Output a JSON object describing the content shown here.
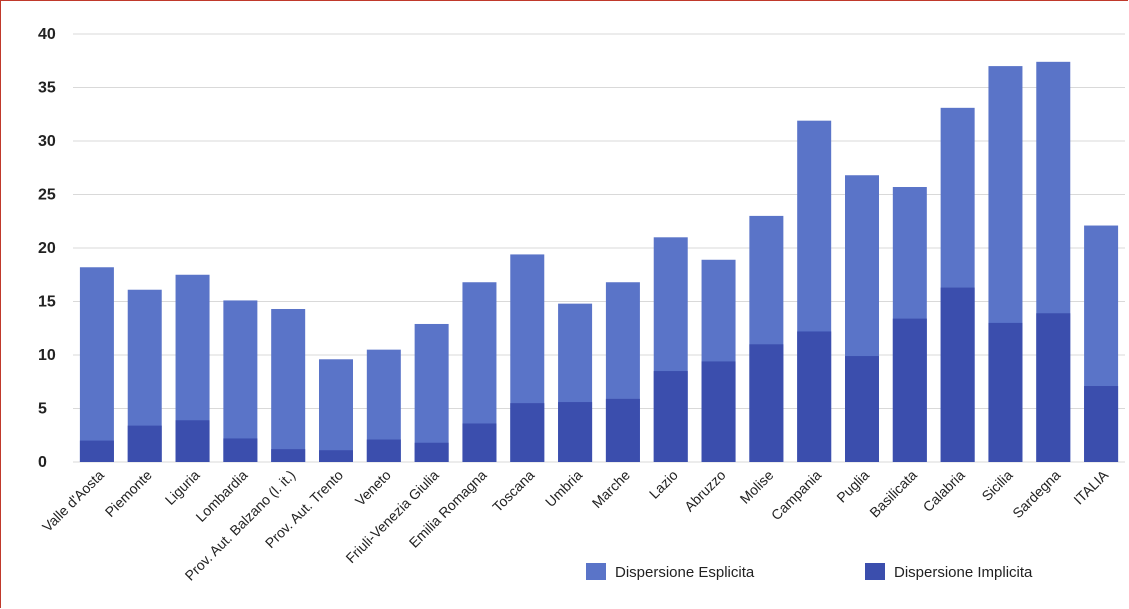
{
  "chart_data": {
    "type": "bar",
    "stacked": false,
    "overlapping": true,
    "categories": [
      "Valle d'Aosta",
      "Piemonte",
      "Liguria",
      "Lombardia",
      "Prov. Aut. Balzano (l. it.)",
      "Prov. Aut. Trento",
      "Veneto",
      "Friuli-Venezia Giulia",
      "Emilia Romagna",
      "Toscana",
      "Umbria",
      "Marche",
      "Lazio",
      "Abruzzo",
      "Molise",
      "Campania",
      "Puglia",
      "Basilicata",
      "Calabria",
      "Sicilia",
      "Sardegna",
      "ITALIA"
    ],
    "series": [
      {
        "name": "Dispersione Esplicita",
        "values": [
          18.2,
          16.1,
          17.5,
          15.1,
          14.3,
          9.6,
          10.5,
          12.9,
          16.8,
          19.4,
          14.8,
          16.8,
          21.0,
          18.9,
          23.0,
          31.9,
          26.8,
          25.7,
          33.1,
          37.0,
          37.4,
          22.1
        ]
      },
      {
        "name": "Dispersione Implicita",
        "values": [
          2.0,
          3.4,
          3.9,
          2.2,
          1.2,
          1.1,
          2.1,
          1.8,
          3.6,
          5.5,
          5.6,
          5.9,
          8.5,
          9.4,
          11.0,
          12.2,
          9.9,
          13.4,
          16.3,
          13.0,
          13.9,
          7.1
        ]
      }
    ],
    "ylim": [
      0,
      40
    ],
    "yticks": [
      0,
      5,
      10,
      15,
      20,
      25,
      30,
      35,
      40
    ],
    "grid": true,
    "legend_position": "bottom-right",
    "colors": {
      "esplicita": "#5a74c8",
      "implicita": "#3b4ead"
    }
  }
}
